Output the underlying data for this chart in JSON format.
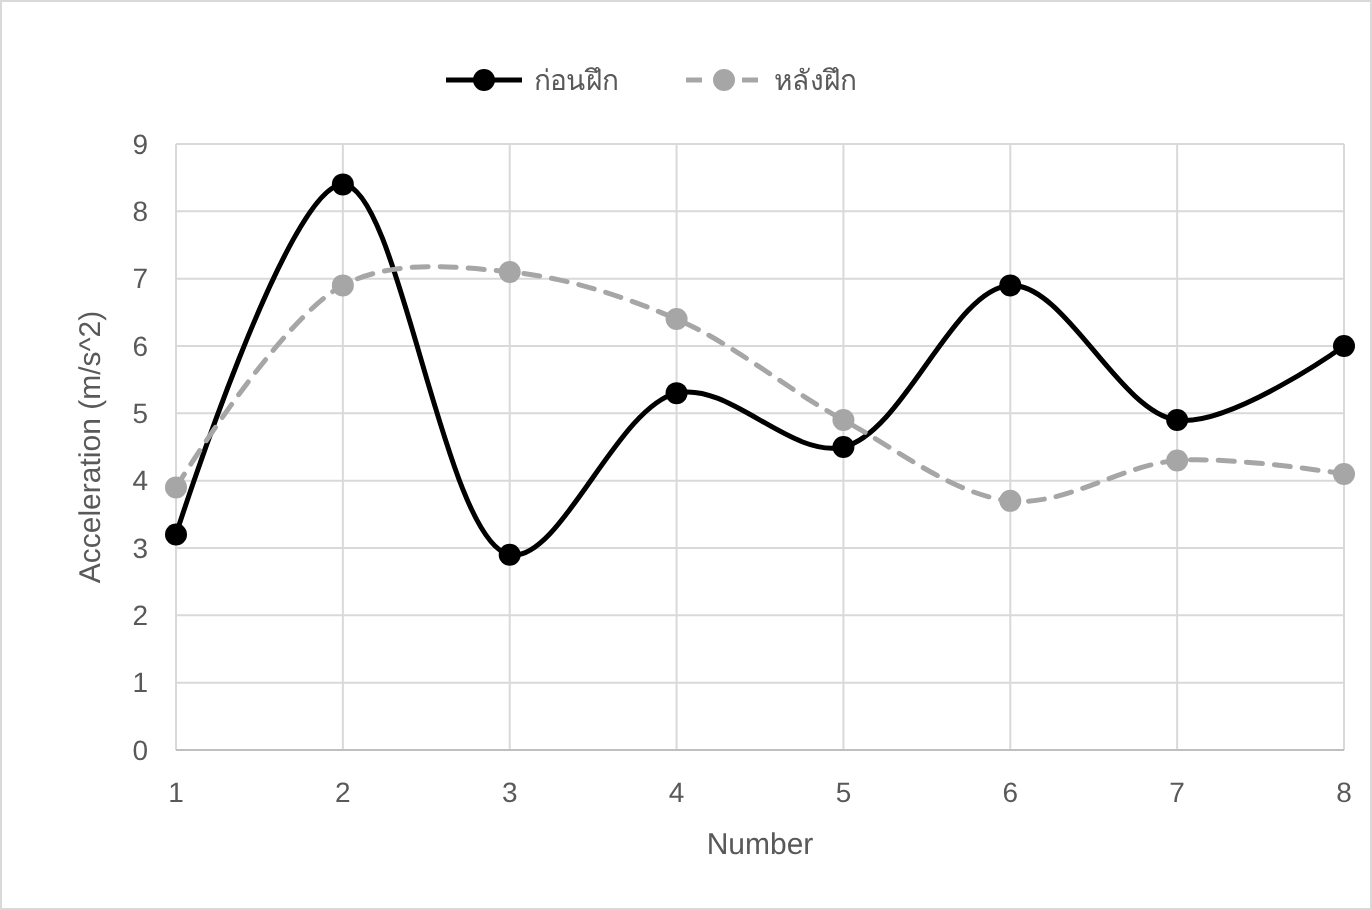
{
  "chart_data": {
    "type": "line",
    "xlabel": "Number",
    "ylabel": "Acceleration (m/s^2)",
    "x": [
      1,
      2,
      3,
      4,
      5,
      6,
      7,
      8
    ],
    "xlim": [
      1,
      8
    ],
    "xticks": [
      1,
      2,
      3,
      4,
      5,
      6,
      7,
      8
    ],
    "ylim": [
      0,
      9
    ],
    "yticks": [
      0,
      1,
      2,
      3,
      4,
      5,
      6,
      7,
      8,
      9
    ],
    "grid": true,
    "legend": "top",
    "marker": "circle",
    "series": [
      {
        "name": "ก่อนฝึก",
        "color": "#000000",
        "line_style": "solid",
        "values": [
          3.2,
          8.4,
          2.9,
          5.3,
          4.5,
          6.9,
          4.9,
          6.0
        ]
      },
      {
        "name": "หลังฝึก",
        "color": "#a6a6a6",
        "line_style": "dashed",
        "values": [
          3.9,
          6.9,
          7.1,
          6.4,
          4.9,
          3.7,
          4.3,
          4.1
        ]
      }
    ]
  }
}
